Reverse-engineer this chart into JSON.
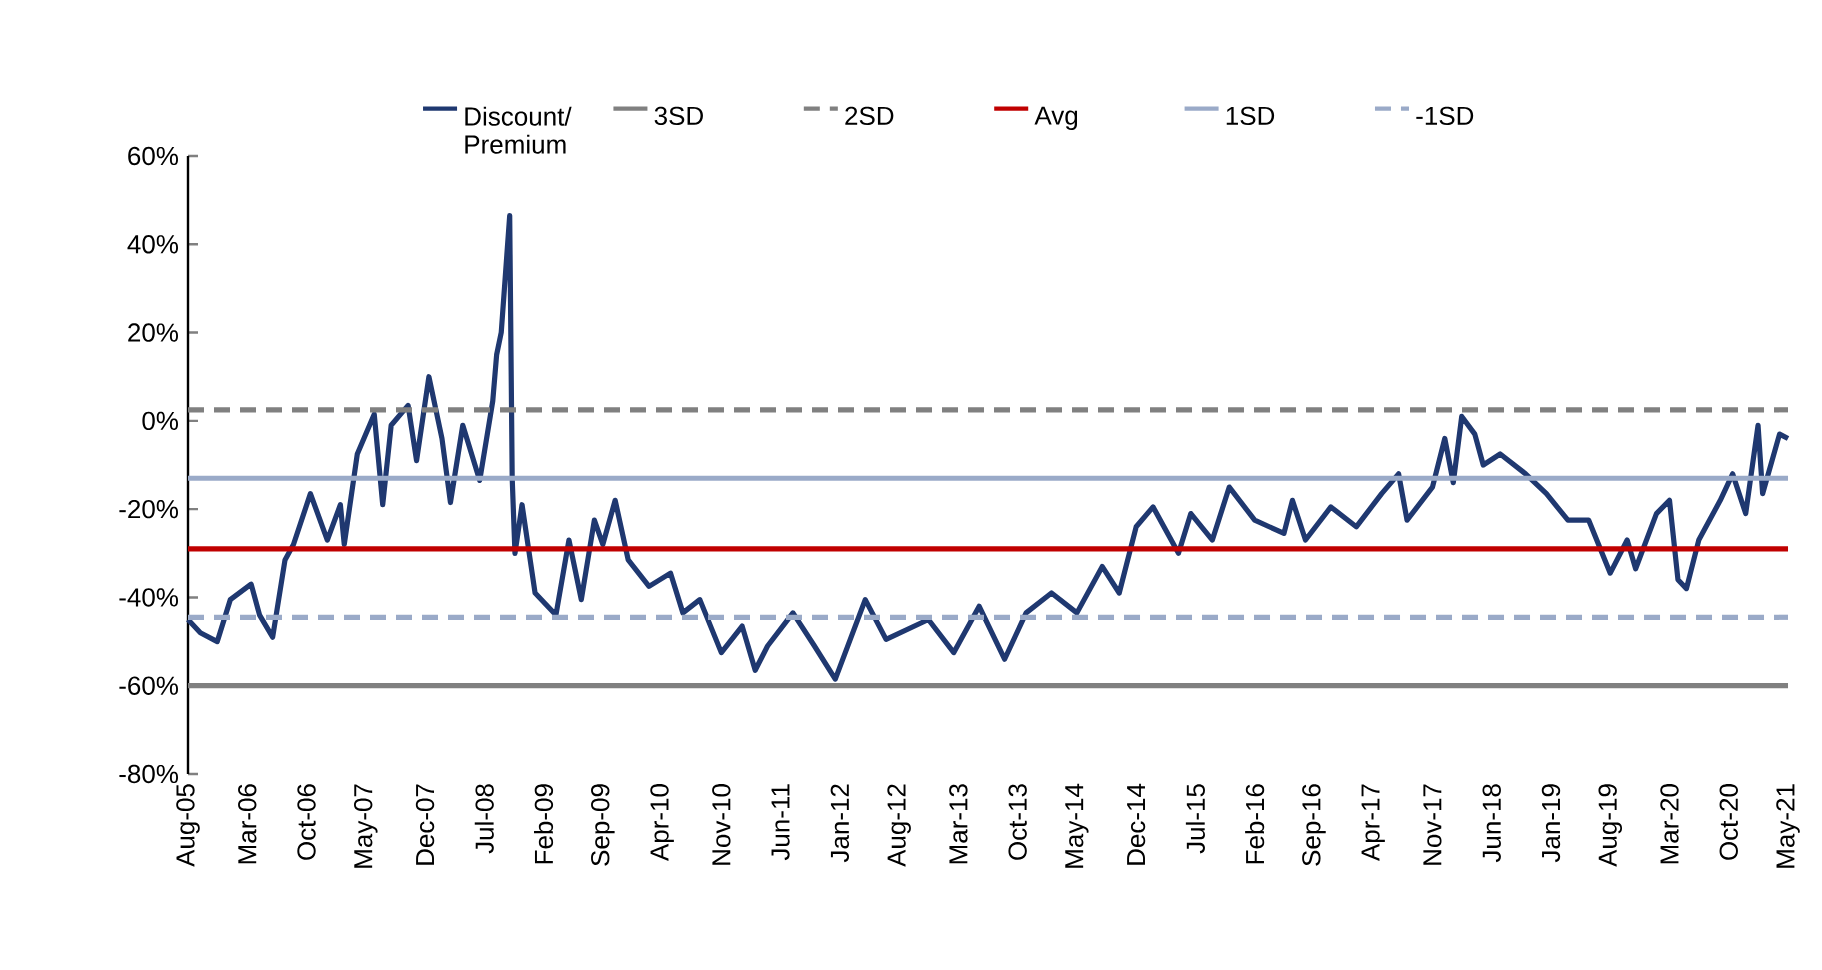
{
  "chart_data": {
    "type": "line",
    "xlim": [
      "2005-08",
      "2021-05"
    ],
    "xticks": [
      {
        "value": "2005-08",
        "label": "Aug-05"
      },
      {
        "value": "2006-03",
        "label": "Mar-06"
      },
      {
        "value": "2006-10",
        "label": "Oct-06"
      },
      {
        "value": "2007-05",
        "label": "May-07"
      },
      {
        "value": "2007-12",
        "label": "Dec-07"
      },
      {
        "value": "2008-07",
        "label": "Jul-08"
      },
      {
        "value": "2009-02",
        "label": "Feb-09"
      },
      {
        "value": "2009-09",
        "label": "Sep-09"
      },
      {
        "value": "2010-04",
        "label": "Apr-10"
      },
      {
        "value": "2010-11",
        "label": "Nov-10"
      },
      {
        "value": "2011-06",
        "label": "Jun-11"
      },
      {
        "value": "2012-01",
        "label": "Jan-12"
      },
      {
        "value": "2012-08",
        "label": "Aug-12"
      },
      {
        "value": "2013-03",
        "label": "Mar-13"
      },
      {
        "value": "2013-10",
        "label": "Oct-13"
      },
      {
        "value": "2014-05",
        "label": "May-14"
      },
      {
        "value": "2014-12",
        "label": "Dec-14"
      },
      {
        "value": "2015-07",
        "label": "Jul-15"
      },
      {
        "value": "2016-02",
        "label": "Feb-16"
      },
      {
        "value": "2016-09",
        "label": "Sep-16"
      },
      {
        "value": "2017-04",
        "label": "Apr-17"
      },
      {
        "value": "2017-11",
        "label": "Nov-17"
      },
      {
        "value": "2018-06",
        "label": "Jun-18"
      },
      {
        "value": "2019-01",
        "label": "Jan-19"
      },
      {
        "value": "2019-08",
        "label": "Aug-19"
      },
      {
        "value": "2020-03",
        "label": "Mar-20"
      },
      {
        "value": "2020-10",
        "label": "Oct-20"
      },
      {
        "value": "2021-05",
        "label": "May-21"
      }
    ],
    "ylim": [
      -80,
      60
    ],
    "yticks": [
      {
        "value": -80,
        "label": "-80%"
      },
      {
        "value": -60,
        "label": "-60%"
      },
      {
        "value": -40,
        "label": "-40%"
      },
      {
        "value": -20,
        "label": "-20%"
      },
      {
        "value": 0,
        "label": "0%"
      },
      {
        "value": 20,
        "label": "20%"
      },
      {
        "value": 40,
        "label": "40%"
      },
      {
        "value": 60,
        "label": "60%"
      }
    ],
    "legend": "top",
    "series": [
      {
        "name": "Discount/ Premium",
        "color": "#1f3870",
        "line_style": "solid",
        "x": [
          "2005-08-01",
          "2005-09-15",
          "2005-11-15",
          "2006-01-01",
          "2006-03-15",
          "2006-04-15",
          "2006-06-01",
          "2006-07-15",
          "2006-08-15",
          "2006-10-15",
          "2006-12-15",
          "2007-02-01",
          "2007-02-15",
          "2007-04-01",
          "2007-06-01",
          "2007-07-01",
          "2007-08-01",
          "2007-10-01",
          "2007-11-01",
          "2007-12-15",
          "2008-02-01",
          "2008-03-01",
          "2008-04-15",
          "2008-06-15",
          "2008-08-01",
          "2008-08-15",
          "2008-09-01",
          "2008-10-01",
          "2008-10-10",
          "2008-10-20",
          "2008-11-15",
          "2009-01-01",
          "2009-03-15",
          "2009-05-01",
          "2009-06-15",
          "2009-08-01",
          "2009-09-01",
          "2009-10-15",
          "2009-12-01",
          "2010-02-15",
          "2010-05-01",
          "2010-06-15",
          "2010-08-15",
          "2010-11-01",
          "2011-01-15",
          "2011-03-01",
          "2011-04-15",
          "2011-07-15",
          "2011-10-01",
          "2011-12-15",
          "2012-04-01",
          "2012-06-15",
          "2012-11-15",
          "2013-02-15",
          "2013-05-15",
          "2013-08-15",
          "2013-11-01",
          "2014-02-01",
          "2014-05-01",
          "2014-08-01",
          "2014-10-01",
          "2014-12-01",
          "2015-02-01",
          "2015-05-01",
          "2015-06-15",
          "2015-09-01",
          "2015-11-01",
          "2016-02-01",
          "2016-05-15",
          "2016-06-15",
          "2016-08-01",
          "2016-11-01",
          "2017-02-01",
          "2017-05-01",
          "2017-07-01",
          "2017-08-01",
          "2017-11-01",
          "2017-12-15",
          "2018-01-15",
          "2018-02-15",
          "2018-04-01",
          "2018-05-01",
          "2018-07-01",
          "2018-10-01",
          "2018-12-15",
          "2019-03-01",
          "2019-05-15",
          "2019-08-01",
          "2019-10-01",
          "2019-11-01",
          "2020-01-15",
          "2020-03-01",
          "2020-04-01",
          "2020-05-01",
          "2020-06-15",
          "2020-09-01",
          "2020-10-15",
          "2020-12-01",
          "2021-01-15",
          "2021-02-01",
          "2021-04-01",
          "2021-05-01"
        ],
        "values": [
          -45,
          -48,
          -50,
          -40.5,
          -37,
          -44,
          -49,
          -31.5,
          -28,
          -16.5,
          -27,
          -19,
          -28,
          -7.5,
          1.5,
          -19,
          -1,
          3.5,
          -9,
          10,
          -4,
          -18.5,
          -1,
          -13.5,
          4.5,
          15,
          20,
          46.5,
          -13,
          -30,
          -19,
          -39,
          -44,
          -27,
          -40.5,
          -22.5,
          -28,
          -18,
          -31.5,
          -37.5,
          -34.5,
          -43.5,
          -40.5,
          -52.5,
          -46.5,
          -56.5,
          -51,
          -43.5,
          -51,
          -58.5,
          -40.5,
          -49.5,
          -45,
          -52.5,
          -42,
          -54,
          -43.5,
          -39,
          -43.5,
          -33,
          -39,
          -24,
          -19.5,
          -30,
          -21,
          -27,
          -15,
          -22.5,
          -25.5,
          -18,
          -27,
          -19.5,
          -24,
          -16.5,
          -12,
          -22.5,
          -15,
          -4,
          -14,
          1,
          -3,
          -10,
          -7.5,
          -12,
          -16.5,
          -22.5,
          -22.5,
          -34.5,
          -27,
          -33.5,
          -21,
          -18,
          -36,
          -38,
          -27,
          -18,
          -12,
          -21,
          -1,
          -16.5,
          -3,
          -4
        ]
      },
      {
        "name": "3SD",
        "color": "#808080",
        "line_style": "solid",
        "x": [
          "2005-08",
          "2021-05"
        ],
        "values": [
          -60,
          -60
        ]
      },
      {
        "name": "2SD",
        "color": "#808080",
        "line_style": "dashed",
        "x": [
          "2005-08",
          "2021-05"
        ],
        "values": [
          2.5,
          2.5
        ]
      },
      {
        "name": "Avg",
        "color": "#c00000",
        "line_style": "solid",
        "x": [
          "2005-08",
          "2021-05"
        ],
        "values": [
          -29,
          -29
        ]
      },
      {
        "name": "1SD",
        "color": "#9aaac8",
        "line_style": "solid",
        "x": [
          "2005-08",
          "2021-05"
        ],
        "values": [
          -13,
          -13
        ]
      },
      {
        "name": "-1SD",
        "color": "#9aaac8",
        "line_style": "dashed",
        "x": [
          "2005-08",
          "2021-05"
        ],
        "values": [
          -44.5,
          -44.5
        ]
      }
    ]
  }
}
